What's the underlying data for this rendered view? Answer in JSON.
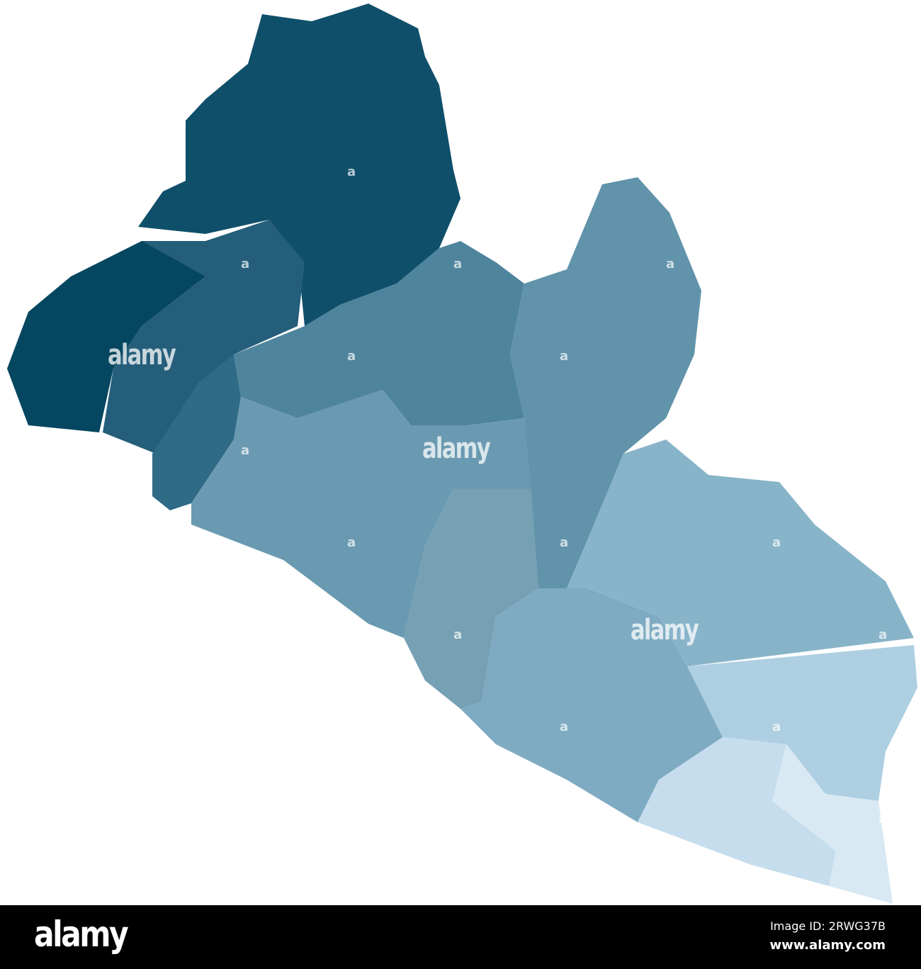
{
  "map": {
    "regions": [
      {
        "id": "lofa",
        "color": "#0f4f6a"
      },
      {
        "id": "grand-cape-mount",
        "color": "#054660"
      },
      {
        "id": "gbarpolu",
        "color": "#245e7a"
      },
      {
        "id": "bomi",
        "color": "#2f6a86"
      },
      {
        "id": "bong",
        "color": "#4f849d"
      },
      {
        "id": "nimba",
        "color": "#6193ab"
      },
      {
        "id": "grand-bassa",
        "color": "#6a9ab1"
      },
      {
        "id": "river-cess",
        "color": "#76a0b3"
      },
      {
        "id": "grand-gedeh",
        "color": "#88b4c9"
      },
      {
        "id": "sinoe",
        "color": "#7eaac2"
      },
      {
        "id": "river-gee",
        "color": "#aecfe2"
      },
      {
        "id": "grand-kru",
        "color": "#c6dded"
      },
      {
        "id": "maryland",
        "color": "#d8e9f3"
      }
    ]
  },
  "watermark": {
    "text": "alamy",
    "mark": "a"
  },
  "footer": {
    "logo": "alamy",
    "image_id": "Image ID: 2RWG37B",
    "site": "www.alamy.com"
  }
}
